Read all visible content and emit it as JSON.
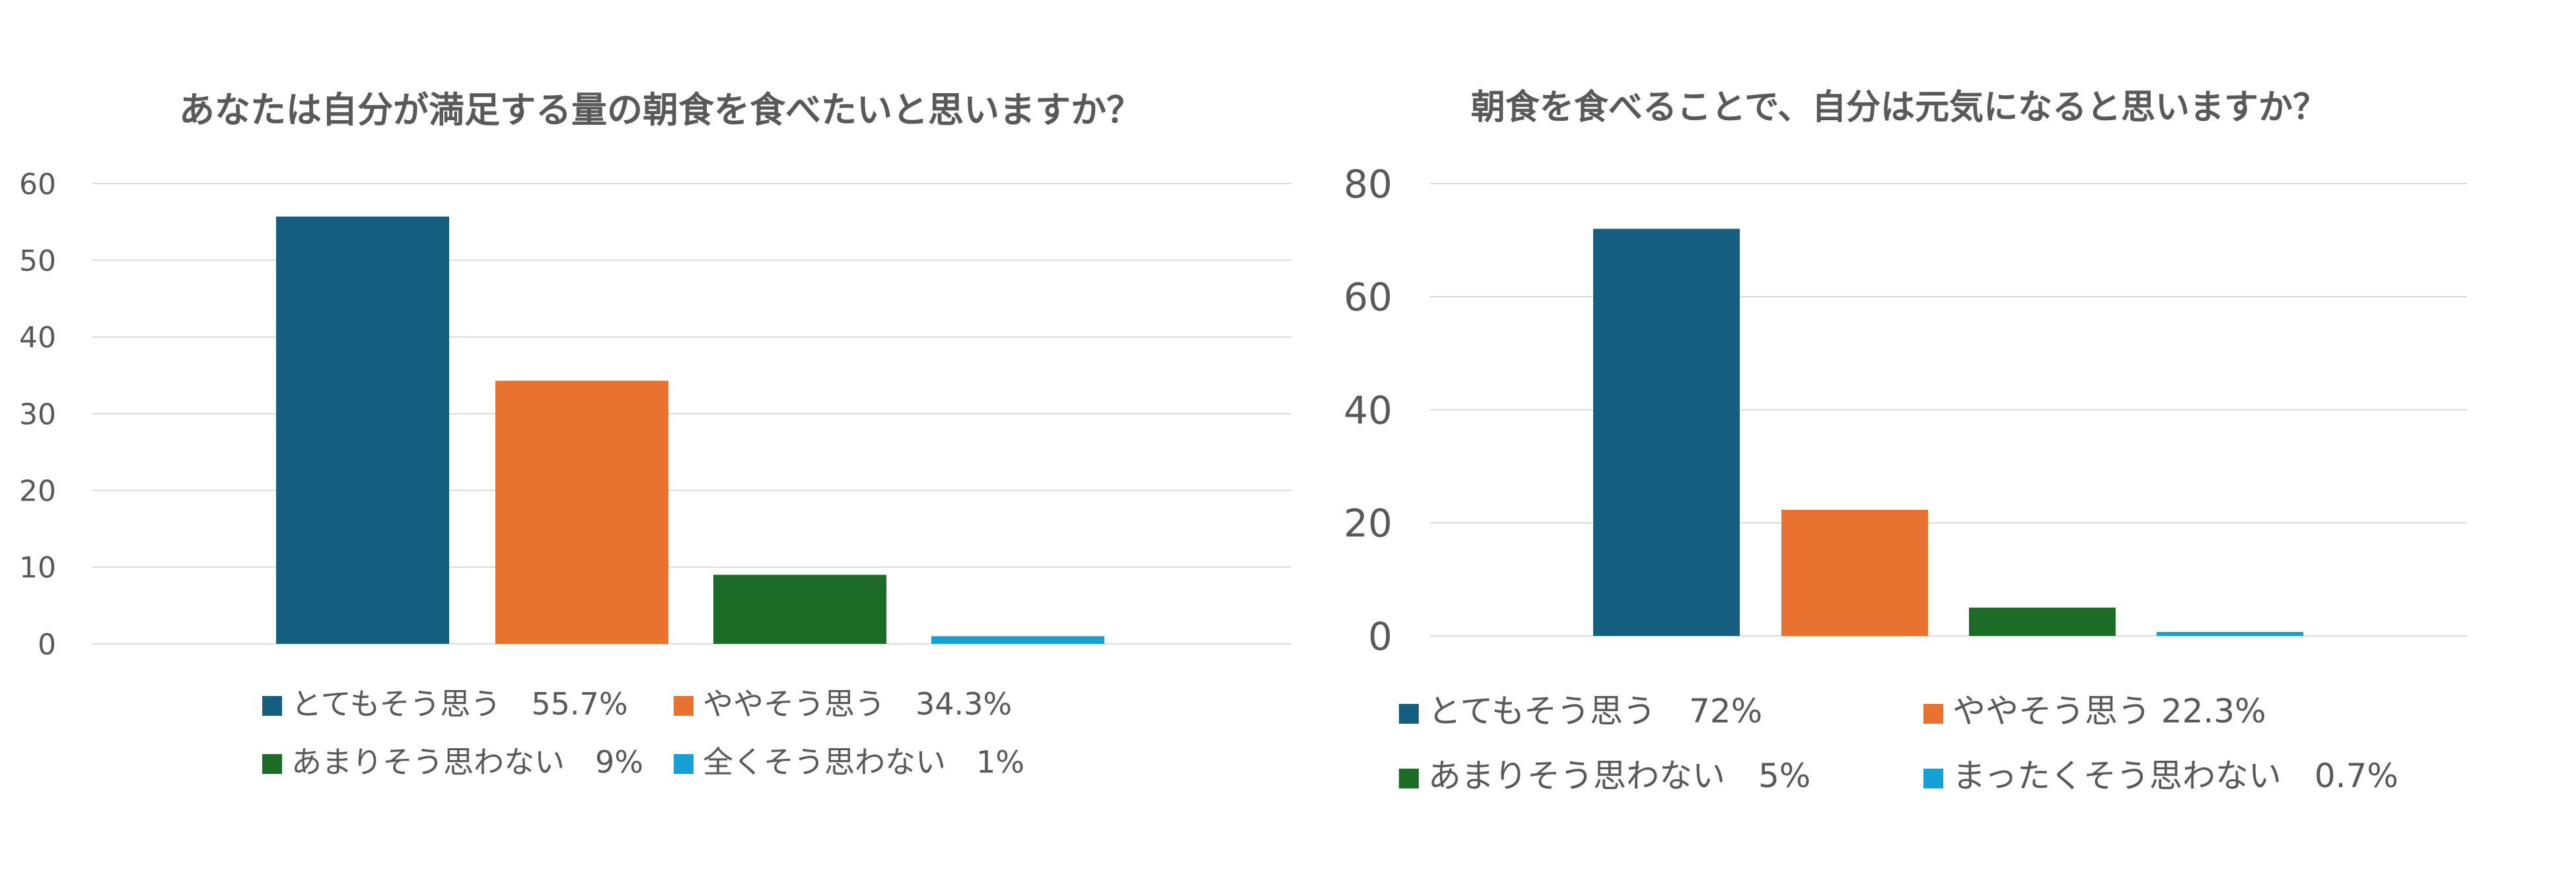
{
  "chart_data": [
    {
      "type": "bar",
      "title": "あなたは自分が満足する量の朝食を食べたいと思いますか？",
      "xlabel": "",
      "ylabel": "",
      "ylim": [
        0,
        60
      ],
      "yticks": [
        0,
        10,
        20,
        30,
        40,
        50,
        60
      ],
      "grid": true,
      "legend_position": "bottom",
      "series": [
        {
          "name": "とてもそう思う　55.7%",
          "value": 55.7,
          "color": "#165e80"
        },
        {
          "name": "ややそう思う　34.3%",
          "value": 34.3,
          "color": "#e87331"
        },
        {
          "name": "あまりそう思わない　9%",
          "value": 9,
          "color": "#1c6b26"
        },
        {
          "name": "全くそう思わない　1%",
          "value": 1,
          "color": "#17a0d4"
        }
      ]
    },
    {
      "type": "bar",
      "title": "朝食を食べることで、自分は元気になると思いますか？",
      "xlabel": "",
      "ylabel": "",
      "ylim": [
        0,
        80
      ],
      "yticks": [
        0,
        20,
        40,
        60,
        80
      ],
      "grid": true,
      "legend_position": "bottom",
      "series": [
        {
          "name": "とてもそう思う　72%",
          "value": 72,
          "color": "#165e80"
        },
        {
          "name": "ややそう思う 22.3%",
          "value": 22.3,
          "color": "#e87331"
        },
        {
          "name": "あまりそう思わない　5%",
          "value": 5,
          "color": "#1c6b26"
        },
        {
          "name": "まったくそう思わない　0.7%",
          "value": 0.7,
          "color": "#17a0d4"
        }
      ]
    }
  ]
}
